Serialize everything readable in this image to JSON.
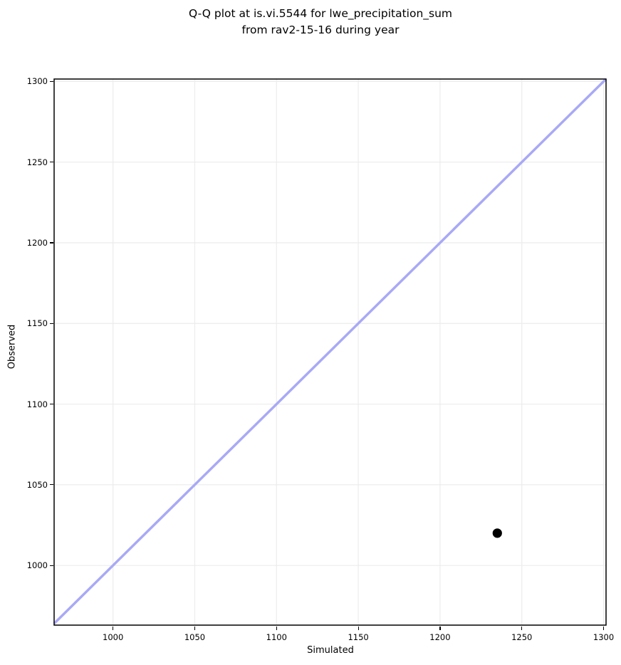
{
  "figure": {
    "title_line1": "Q-Q plot at is.vi.5544 for lwe_precipitation_sum",
    "title_line2": "from rav2-15-16 during year"
  },
  "chart_data": {
    "type": "scatter",
    "title": "Q-Q plot at is.vi.5544 for lwe_precipitation_sum\nfrom rav2-15-16 during year",
    "xlabel": "Simulated",
    "ylabel": "Observed",
    "xlim": [
      964,
      1301.5
    ],
    "ylim": [
      963,
      1301.5
    ],
    "x_ticks": [
      1000,
      1050,
      1100,
      1150,
      1200,
      1250,
      1300
    ],
    "y_ticks": [
      1000,
      1050,
      1100,
      1150,
      1200,
      1250,
      1300
    ],
    "grid": true,
    "legend": false,
    "series": [
      {
        "name": "identity-reference-line",
        "type": "line",
        "points": [
          {
            "x": 964,
            "y": 964
          },
          {
            "x": 1301.5,
            "y": 1301.5
          }
        ],
        "color": "#a9a9f6",
        "stroke_width": 3.5
      },
      {
        "name": "qq-points",
        "type": "scatter",
        "points": [
          {
            "x": 1235,
            "y": 1020
          }
        ],
        "color": "#000000",
        "marker_radius": 6.6
      }
    ],
    "colors": {
      "background": "#ffffff",
      "grid": "#ececec",
      "spine": "#000000",
      "tick": "#000000"
    }
  }
}
